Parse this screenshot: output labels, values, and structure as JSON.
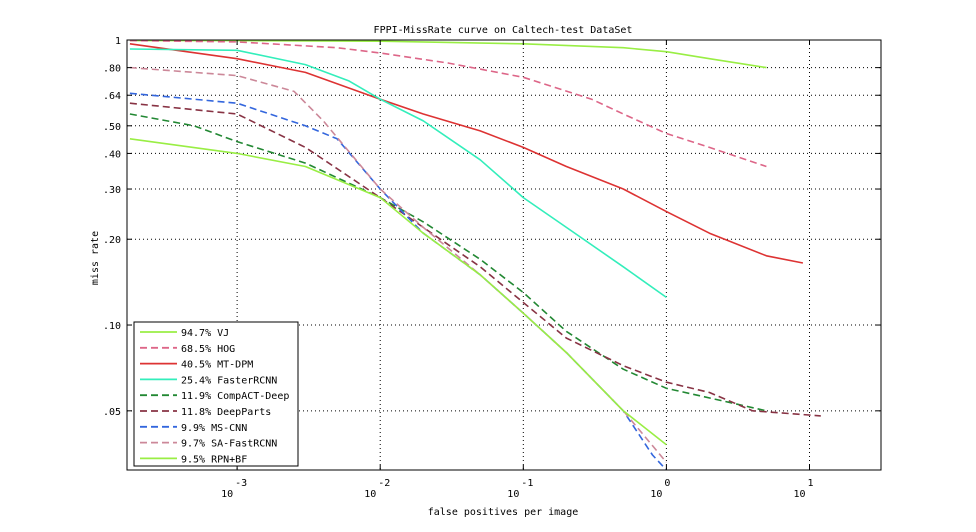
{
  "chart_data": {
    "type": "line",
    "title": "FPPI-MissRate curve on Caltech-test DataSet",
    "xlabel": "false positives per image",
    "ylabel": "miss rate",
    "x_scale": "log",
    "y_scale": "log",
    "xlim": [
      0.00017,
      31.6
    ],
    "ylim": [
      0.031,
      1.0
    ],
    "grid": true,
    "legend_placement": "lower-left",
    "x_ticks": [
      {
        "value": 0.001,
        "base": "10",
        "exp": "-3"
      },
      {
        "value": 0.01,
        "base": "10",
        "exp": "-2"
      },
      {
        "value": 0.1,
        "base": "10",
        "exp": "-1"
      },
      {
        "value": 1,
        "base": "10",
        "exp": "0"
      },
      {
        "value": 10,
        "base": "10",
        "exp": "1"
      }
    ],
    "y_ticks": [
      {
        "value": 1.0,
        "label": "1"
      },
      {
        "value": 0.8,
        "label": ".80"
      },
      {
        "value": 0.64,
        "label": ".64"
      },
      {
        "value": 0.5,
        "label": ".50"
      },
      {
        "value": 0.4,
        "label": ".40"
      },
      {
        "value": 0.3,
        "label": ".30"
      },
      {
        "value": 0.2,
        "label": ".20"
      },
      {
        "value": 0.1,
        "label": ".10"
      },
      {
        "value": 0.05,
        "label": ".05"
      }
    ],
    "series": [
      {
        "name": "94.7% VJ",
        "color": "#99ee44",
        "dash": "solid",
        "points": [
          [
            0.000178,
            0.995
          ],
          [
            0.001,
            0.995
          ],
          [
            0.01,
            0.99
          ],
          [
            0.1,
            0.97
          ],
          [
            0.5,
            0.94
          ],
          [
            1,
            0.91
          ],
          [
            2,
            0.86
          ],
          [
            5,
            0.8
          ]
        ]
      },
      {
        "name": "68.5% HOG",
        "color": "#dd6688",
        "dash": "dashed",
        "points": [
          [
            0.000178,
            0.995
          ],
          [
            0.001,
            0.985
          ],
          [
            0.005,
            0.94
          ],
          [
            0.01,
            0.9
          ],
          [
            0.03,
            0.83
          ],
          [
            0.1,
            0.74
          ],
          [
            0.3,
            0.62
          ],
          [
            0.5,
            0.55
          ],
          [
            1,
            0.47
          ],
          [
            2,
            0.42
          ],
          [
            5,
            0.36
          ]
        ]
      },
      {
        "name": "40.5% MT-DPM",
        "color": "#dd3333",
        "dash": "solid",
        "points": [
          [
            0.000178,
            0.97
          ],
          [
            0.001,
            0.86
          ],
          [
            0.003,
            0.77
          ],
          [
            0.01,
            0.62
          ],
          [
            0.02,
            0.55
          ],
          [
            0.05,
            0.48
          ],
          [
            0.1,
            0.42
          ],
          [
            0.2,
            0.36
          ],
          [
            0.5,
            0.3
          ],
          [
            1,
            0.25
          ],
          [
            2,
            0.21
          ],
          [
            5,
            0.175
          ],
          [
            9,
            0.165
          ]
        ]
      },
      {
        "name": "25.4% FasterRCNN",
        "color": "#33eebb",
        "dash": "solid",
        "points": [
          [
            0.000178,
            0.93
          ],
          [
            0.001,
            0.92
          ],
          [
            0.003,
            0.82
          ],
          [
            0.006,
            0.72
          ],
          [
            0.01,
            0.62
          ],
          [
            0.02,
            0.52
          ],
          [
            0.05,
            0.38
          ],
          [
            0.1,
            0.28
          ],
          [
            0.2,
            0.22
          ],
          [
            0.5,
            0.16
          ],
          [
            1,
            0.125
          ]
        ]
      },
      {
        "name": "11.9% CompACT-Deep",
        "color": "#228833",
        "dash": "dashed",
        "points": [
          [
            0.000178,
            0.55
          ],
          [
            0.0005,
            0.5
          ],
          [
            0.001,
            0.44
          ],
          [
            0.003,
            0.37
          ],
          [
            0.01,
            0.28
          ],
          [
            0.02,
            0.23
          ],
          [
            0.05,
            0.17
          ],
          [
            0.1,
            0.13
          ],
          [
            0.2,
            0.095
          ],
          [
            0.5,
            0.07
          ],
          [
            1,
            0.06
          ],
          [
            3,
            0.053
          ],
          [
            5,
            0.05
          ]
        ]
      },
      {
        "name": "11.8% DeepParts",
        "color": "#883344",
        "dash": "dashed",
        "points": [
          [
            0.000178,
            0.6
          ],
          [
            0.001,
            0.55
          ],
          [
            0.003,
            0.42
          ],
          [
            0.01,
            0.28
          ],
          [
            0.02,
            0.22
          ],
          [
            0.05,
            0.16
          ],
          [
            0.1,
            0.12
          ],
          [
            0.2,
            0.09
          ],
          [
            0.5,
            0.072
          ],
          [
            1,
            0.063
          ],
          [
            2,
            0.058
          ],
          [
            4,
            0.05
          ],
          [
            12,
            0.048
          ]
        ]
      },
      {
        "name": "9.9% MS-CNN",
        "color": "#3366dd",
        "dash": "dashed",
        "points": [
          [
            0.000178,
            0.65
          ],
          [
            0.001,
            0.6
          ],
          [
            0.003,
            0.5
          ],
          [
            0.005,
            0.45
          ],
          [
            0.01,
            0.3
          ],
          [
            0.02,
            0.21
          ],
          [
            0.05,
            0.15
          ],
          [
            0.1,
            0.11
          ],
          [
            0.2,
            0.08
          ],
          [
            0.5,
            0.05
          ],
          [
            0.8,
            0.035
          ],
          [
            1,
            0.031
          ]
        ]
      },
      {
        "name": "9.7% SA-FastRCNN",
        "color": "#cc8899",
        "dash": "dashed",
        "points": [
          [
            0.000178,
            0.8
          ],
          [
            0.001,
            0.75
          ],
          [
            0.0025,
            0.66
          ],
          [
            0.004,
            0.52
          ],
          [
            0.01,
            0.3
          ],
          [
            0.02,
            0.22
          ],
          [
            0.05,
            0.15
          ],
          [
            0.1,
            0.11
          ],
          [
            0.2,
            0.08
          ],
          [
            0.5,
            0.05
          ],
          [
            1,
            0.033
          ]
        ]
      },
      {
        "name": "9.5% RPN+BF",
        "color": "#99ee44",
        "dash": "solid",
        "points": [
          [
            0.000178,
            0.45
          ],
          [
            0.001,
            0.4
          ],
          [
            0.003,
            0.36
          ],
          [
            0.01,
            0.28
          ],
          [
            0.02,
            0.21
          ],
          [
            0.05,
            0.15
          ],
          [
            0.1,
            0.11
          ],
          [
            0.2,
            0.08
          ],
          [
            0.5,
            0.05
          ],
          [
            1,
            0.038
          ]
        ]
      }
    ]
  }
}
